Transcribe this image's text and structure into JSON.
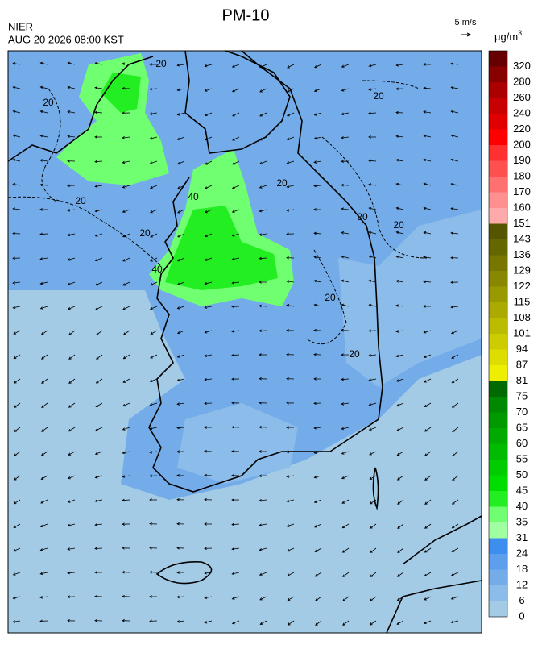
{
  "header": {
    "title": "PM-10",
    "agency": "NIER",
    "datetime": "AUG 20 2026 08:00 KST",
    "wind_scale": "5 m/s"
  },
  "legend": {
    "unit": "μg/m",
    "unit_power": "3",
    "ticks": [
      "0",
      "6",
      "12",
      "18",
      "24",
      "31",
      "35",
      "40",
      "45",
      "50",
      "55",
      "60",
      "65",
      "70",
      "75",
      "81",
      "87",
      "94",
      "101",
      "108",
      "115",
      "122",
      "129",
      "136",
      "143",
      "151",
      "160",
      "170",
      "180",
      "190",
      "200",
      "220",
      "240",
      "260",
      "280",
      "320"
    ],
    "colors": [
      "#a3cbe6",
      "#8cbcea",
      "#74ace9",
      "#5d9fec",
      "#3e8ef0",
      "#a0ffa0",
      "#70ff70",
      "#22ee22",
      "#00dd00",
      "#00cc00",
      "#00bb00",
      "#00aa00",
      "#009900",
      "#008800",
      "#006a00",
      "#eeee00",
      "#dddd00",
      "#cccc00",
      "#bbbb00",
      "#aaaa00",
      "#999900",
      "#888800",
      "#777700",
      "#666600",
      "#555500",
      "#ffaaaa",
      "#ff9090",
      "#ff7070",
      "#ff5050",
      "#ff3030",
      "#ff0000",
      "#e00000",
      "#c80000",
      "#aa0000",
      "#880000",
      "#660000"
    ]
  },
  "contour_labels": [
    "20",
    "20",
    "20",
    "20",
    "20",
    "20",
    "20",
    "40",
    "40",
    "20",
    "20",
    "20"
  ]
}
